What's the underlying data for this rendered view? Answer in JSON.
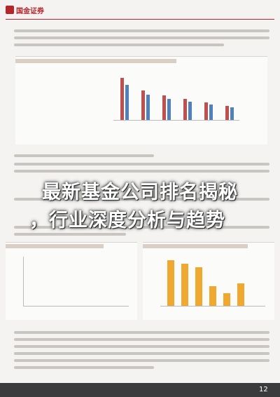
{
  "header": {
    "logo": "国金证券"
  },
  "overlay": {
    "title_line1": "最新基金公司排名揭秘",
    "title_line2": "，行业深度分析与趋势"
  },
  "footer": {
    "page_number": "12"
  }
}
